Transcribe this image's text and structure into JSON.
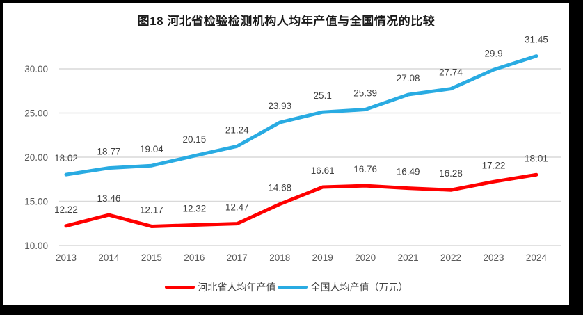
{
  "chart_data": {
    "type": "line",
    "title": "图18 河北省检验检测机构人均年产值与全国情况的比较",
    "categories": [
      "2013",
      "2014",
      "2015",
      "2016",
      "2017",
      "2018",
      "2019",
      "2020",
      "2021",
      "2022",
      "2023",
      "2024"
    ],
    "series": [
      {
        "name": "河北省人均年产值",
        "color": "#ff0000",
        "values": [
          12.22,
          13.46,
          12.17,
          12.32,
          12.47,
          14.68,
          16.61,
          16.76,
          16.49,
          16.28,
          17.22,
          18.01
        ],
        "labels": [
          "12.22",
          "13.46",
          "12.17",
          "12.32",
          "12.47",
          "14.68",
          "16.61",
          "16.76",
          "16.49",
          "16.28",
          "17.22",
          "18.01"
        ]
      },
      {
        "name": "全国人均产值（万元）",
        "color": "#29abe2",
        "values": [
          18.02,
          18.77,
          19.04,
          20.15,
          21.24,
          23.93,
          25.1,
          25.39,
          27.08,
          27.74,
          29.9,
          31.45
        ],
        "labels": [
          "18.02",
          "18.77",
          "19.04",
          "20.15",
          "21.24",
          "23.93",
          "25.1",
          "25.39",
          "27.08",
          "27.74",
          "29.9",
          "31.45"
        ]
      }
    ],
    "ylim": [
      10,
      32.5
    ],
    "y_ticks": [
      30,
      25,
      20,
      15,
      10
    ],
    "y_tick_labels": [
      "30.00",
      "25.00",
      "20.00",
      "15.00",
      "10.00"
    ],
    "xlabel": "",
    "ylabel": "",
    "grid": true,
    "data_labels": true,
    "legend_position": "bottom"
  },
  "legend": {
    "items": [
      {
        "label": "河北省人均年产值",
        "color": "#ff0000"
      },
      {
        "label": "全国人均产值（万元）",
        "color": "#29abe2"
      }
    ]
  },
  "colors": {
    "frame": "#000000",
    "background": "#ffffff",
    "gridline": "#d9d9d9",
    "axis_text": "#595959",
    "data_label_text": "#404040",
    "title_text": "#1a1a1a"
  }
}
